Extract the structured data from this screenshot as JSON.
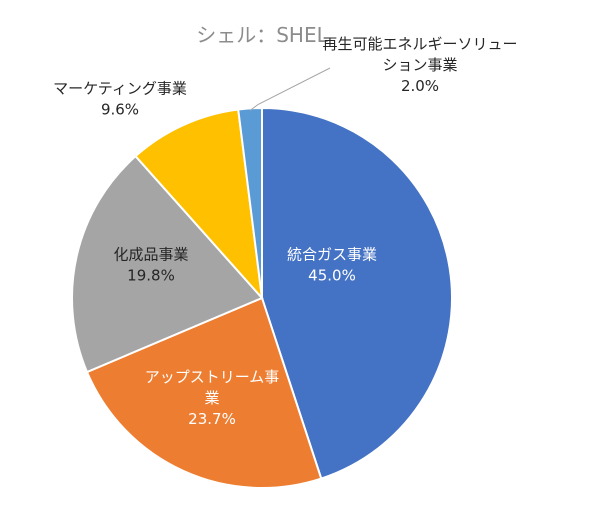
{
  "chart_data": {
    "type": "pie",
    "title": "シェル：SHEL",
    "start_angle_deg": 0,
    "direction": "clockwise",
    "slices": [
      {
        "id": "integrated-gas",
        "label_lines": [
          "統合ガス事業"
        ],
        "value": 45.0,
        "value_label": "45.0%",
        "color": "#4472c4",
        "label_color": "light"
      },
      {
        "id": "upstream",
        "label_lines": [
          "アップストリーム事",
          "業"
        ],
        "value": 23.7,
        "value_label": "23.7%",
        "color": "#ed7d31",
        "label_color": "light"
      },
      {
        "id": "chemicals",
        "label_lines": [
          "化成品事業"
        ],
        "value": 19.8,
        "value_label": "19.8%",
        "color": "#a5a5a5",
        "label_color": "dark"
      },
      {
        "id": "marketing",
        "label_lines": [
          "マーケティング事業"
        ],
        "value": 9.6,
        "value_label": "9.6%",
        "color": "#ffc000",
        "label_color": "dark"
      },
      {
        "id": "renewables",
        "label_lines": [
          "再生可能エネルギーソリュー",
          "ション事業"
        ],
        "value": 2.0,
        "value_label": "2.0%",
        "color": "#5b9bd5",
        "label_color": "dark"
      }
    ]
  }
}
